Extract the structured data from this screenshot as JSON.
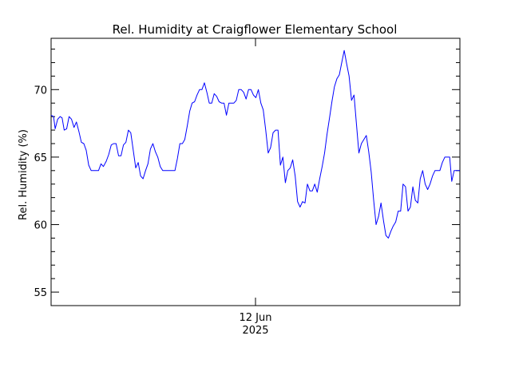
{
  "chart_data": {
    "type": "line",
    "title": "Rel. Humidity at Craigflower Elementary School",
    "xlabel": "",
    "ylabel": "Rel. Humidity (%)",
    "x_tick_labels": [
      {
        "date": "12 Jun",
        "year": "2025",
        "x": 0.5
      }
    ],
    "x_range": [
      0,
      1
    ],
    "x_note": "x expressed as fraction of the plotted time window (data units not labeled beyond the single date tick)",
    "ylim": [
      54,
      73.8
    ],
    "y_major_ticks": [
      55,
      60,
      65,
      70
    ],
    "y_minor_step": 1,
    "grid": false,
    "line_color": "#0000ff",
    "series": [
      {
        "points": [
          [
            0.0,
            68.1
          ],
          [
            0.006,
            68.0
          ],
          [
            0.01,
            67.1
          ],
          [
            0.016,
            67.8
          ],
          [
            0.022,
            68.0
          ],
          [
            0.027,
            67.9
          ],
          [
            0.032,
            67.0
          ],
          [
            0.038,
            67.1
          ],
          [
            0.044,
            68.0
          ],
          [
            0.05,
            67.8
          ],
          [
            0.056,
            67.2
          ],
          [
            0.062,
            67.6
          ],
          [
            0.068,
            66.9
          ],
          [
            0.074,
            66.1
          ],
          [
            0.08,
            66.0
          ],
          [
            0.086,
            65.5
          ],
          [
            0.092,
            64.4
          ],
          [
            0.098,
            64.0
          ],
          [
            0.104,
            64.0
          ],
          [
            0.11,
            64.0
          ],
          [
            0.116,
            64.0
          ],
          [
            0.122,
            64.5
          ],
          [
            0.128,
            64.3
          ],
          [
            0.135,
            64.7
          ],
          [
            0.141,
            65.2
          ],
          [
            0.147,
            65.9
          ],
          [
            0.153,
            66.0
          ],
          [
            0.159,
            66.0
          ],
          [
            0.165,
            65.1
          ],
          [
            0.171,
            65.1
          ],
          [
            0.177,
            65.9
          ],
          [
            0.183,
            66.1
          ],
          [
            0.189,
            67.0
          ],
          [
            0.195,
            66.8
          ],
          [
            0.201,
            65.5
          ],
          [
            0.207,
            64.2
          ],
          [
            0.213,
            64.6
          ],
          [
            0.219,
            63.6
          ],
          [
            0.225,
            63.4
          ],
          [
            0.231,
            64.0
          ],
          [
            0.237,
            64.5
          ],
          [
            0.243,
            65.6
          ],
          [
            0.249,
            66.0
          ],
          [
            0.255,
            65.4
          ],
          [
            0.261,
            65.0
          ],
          [
            0.267,
            64.3
          ],
          [
            0.273,
            64.0
          ],
          [
            0.279,
            64.0
          ],
          [
            0.285,
            64.0
          ],
          [
            0.291,
            64.0
          ],
          [
            0.297,
            64.0
          ],
          [
            0.303,
            64.0
          ],
          [
            0.309,
            64.9
          ],
          [
            0.315,
            66.0
          ],
          [
            0.321,
            66.0
          ],
          [
            0.327,
            66.3
          ],
          [
            0.333,
            67.3
          ],
          [
            0.339,
            68.4
          ],
          [
            0.345,
            69.0
          ],
          [
            0.351,
            69.1
          ],
          [
            0.357,
            69.6
          ],
          [
            0.363,
            70.0
          ],
          [
            0.369,
            70.0
          ],
          [
            0.375,
            70.5
          ],
          [
            0.381,
            69.8
          ],
          [
            0.387,
            69.0
          ],
          [
            0.393,
            69.0
          ],
          [
            0.399,
            69.7
          ],
          [
            0.405,
            69.5
          ],
          [
            0.411,
            69.1
          ],
          [
            0.417,
            69.0
          ],
          [
            0.423,
            69.0
          ],
          [
            0.429,
            68.1
          ],
          [
            0.435,
            69.0
          ],
          [
            0.441,
            69.0
          ],
          [
            0.447,
            69.0
          ],
          [
            0.453,
            69.2
          ],
          [
            0.459,
            70.0
          ],
          [
            0.465,
            70.0
          ],
          [
            0.471,
            69.8
          ],
          [
            0.477,
            69.3
          ],
          [
            0.483,
            70.0
          ],
          [
            0.489,
            70.0
          ],
          [
            0.495,
            69.6
          ],
          [
            0.501,
            69.4
          ],
          [
            0.507,
            70.0
          ],
          [
            0.513,
            69.0
          ],
          [
            0.519,
            68.5
          ],
          [
            0.525,
            67.0
          ],
          [
            0.531,
            65.3
          ],
          [
            0.537,
            65.7
          ],
          [
            0.543,
            66.8
          ],
          [
            0.549,
            67.0
          ],
          [
            0.555,
            67.0
          ],
          [
            0.561,
            64.4
          ],
          [
            0.567,
            65.0
          ],
          [
            0.573,
            63.1
          ],
          [
            0.579,
            64.0
          ],
          [
            0.585,
            64.2
          ],
          [
            0.591,
            64.8
          ],
          [
            0.597,
            63.6
          ],
          [
            0.603,
            61.7
          ],
          [
            0.609,
            61.3
          ],
          [
            0.615,
            61.7
          ],
          [
            0.621,
            61.6
          ],
          [
            0.627,
            63.0
          ],
          [
            0.633,
            62.5
          ],
          [
            0.639,
            62.5
          ],
          [
            0.645,
            63.0
          ],
          [
            0.651,
            62.4
          ],
          [
            0.657,
            63.4
          ],
          [
            0.663,
            64.3
          ],
          [
            0.669,
            65.3
          ],
          [
            0.675,
            66.7
          ],
          [
            0.681,
            67.9
          ],
          [
            0.687,
            69.1
          ],
          [
            0.693,
            70.2
          ],
          [
            0.699,
            70.8
          ],
          [
            0.705,
            71.1
          ],
          [
            0.711,
            72.0
          ],
          [
            0.717,
            72.9
          ],
          [
            0.723,
            71.9
          ],
          [
            0.729,
            71.0
          ],
          [
            0.735,
            69.2
          ],
          [
            0.741,
            69.6
          ],
          [
            0.747,
            67.4
          ],
          [
            0.753,
            65.3
          ],
          [
            0.759,
            66.0
          ],
          [
            0.765,
            66.3
          ],
          [
            0.771,
            66.6
          ],
          [
            0.777,
            65.4
          ],
          [
            0.783,
            63.9
          ],
          [
            0.789,
            61.8
          ],
          [
            0.795,
            60.0
          ],
          [
            0.801,
            60.6
          ],
          [
            0.807,
            61.6
          ],
          [
            0.813,
            60.3
          ],
          [
            0.819,
            59.2
          ],
          [
            0.825,
            59.0
          ],
          [
            0.831,
            59.5
          ],
          [
            0.837,
            59.9
          ],
          [
            0.843,
            60.2
          ],
          [
            0.849,
            61.0
          ],
          [
            0.855,
            61.0
          ],
          [
            0.861,
            63.0
          ],
          [
            0.867,
            62.8
          ],
          [
            0.873,
            61.0
          ],
          [
            0.879,
            61.3
          ],
          [
            0.885,
            62.8
          ],
          [
            0.891,
            61.8
          ],
          [
            0.897,
            61.6
          ],
          [
            0.903,
            63.4
          ],
          [
            0.909,
            64.0
          ],
          [
            0.915,
            63.0
          ],
          [
            0.921,
            62.6
          ],
          [
            0.927,
            63.0
          ],
          [
            0.933,
            63.6
          ],
          [
            0.939,
            64.0
          ],
          [
            0.945,
            64.0
          ],
          [
            0.951,
            64.0
          ],
          [
            0.957,
            64.6
          ],
          [
            0.963,
            65.0
          ],
          [
            0.969,
            65.0
          ],
          [
            0.975,
            65.0
          ],
          [
            0.98,
            63.2
          ],
          [
            0.986,
            64.0
          ],
          [
            1.0,
            64.0
          ]
        ]
      }
    ]
  }
}
